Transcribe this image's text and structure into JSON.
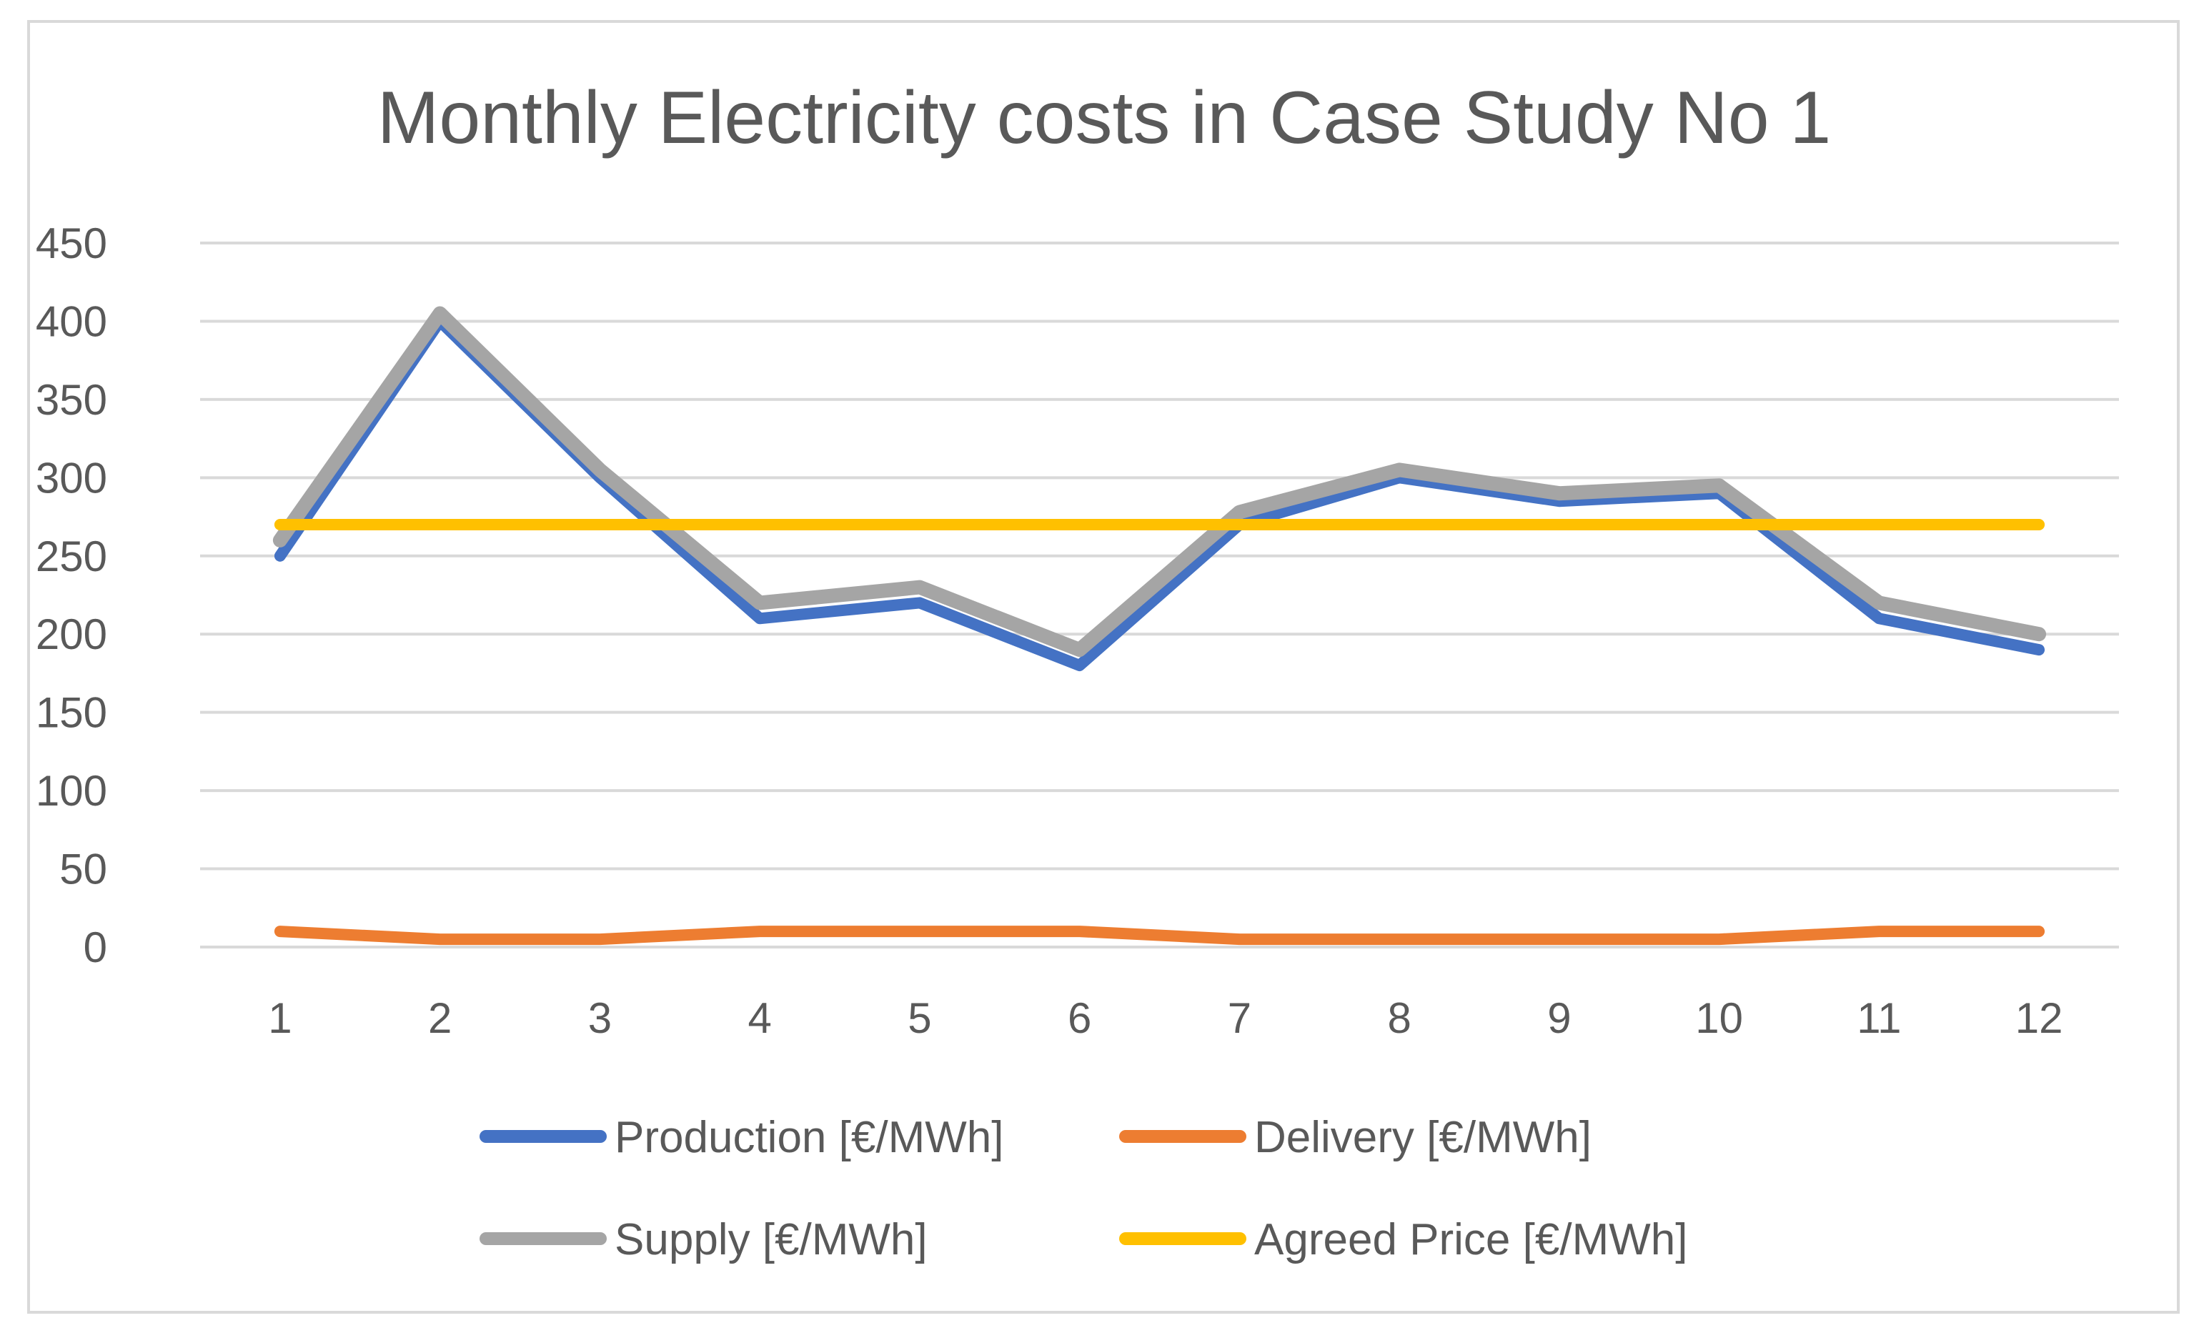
{
  "chart_data": {
    "type": "line",
    "title": "Monthly Electricity costs in Case Study No 1",
    "xlabel": "",
    "ylabel": "",
    "categories": [
      "1",
      "2",
      "3",
      "4",
      "5",
      "6",
      "7",
      "8",
      "9",
      "10",
      "11",
      "12"
    ],
    "ylim": [
      0,
      450
    ],
    "yticks": [
      "0",
      "50",
      "100",
      "150",
      "200",
      "250",
      "300",
      "350",
      "400",
      "450"
    ],
    "grid": true,
    "legend_position": "bottom",
    "series": [
      {
        "name": "Production [€/MWh]",
        "color": "#4472c4",
        "values": [
          250,
          400,
          300,
          210,
          220,
          180,
          270,
          300,
          285,
          290,
          210,
          190
        ]
      },
      {
        "name": "Delivery [€/MWh]",
        "color": "#ed7d31",
        "values": [
          10,
          5,
          5,
          10,
          10,
          10,
          5,
          5,
          5,
          5,
          10,
          10
        ]
      },
      {
        "name": "Supply  [€/MWh]",
        "color": "#a5a5a5",
        "values": [
          260,
          405,
          305,
          220,
          230,
          190,
          278,
          305,
          290,
          295,
          220,
          200
        ]
      },
      {
        "name": "Agreed Price [€/MWh]",
        "color": "#ffc000",
        "values": [
          270,
          270,
          270,
          270,
          270,
          270,
          270,
          270,
          270,
          270,
          270,
          270
        ]
      }
    ]
  }
}
